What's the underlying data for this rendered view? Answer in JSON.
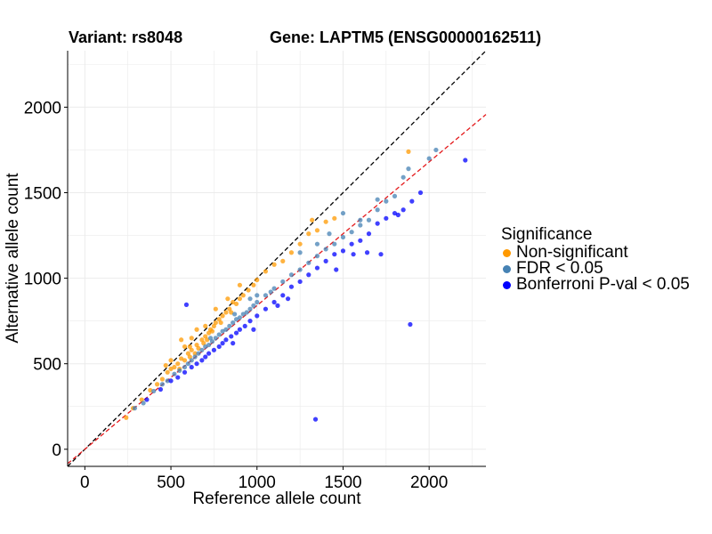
{
  "header": {
    "variant_label": "Variant: rs8048",
    "gene_label": "Gene: LAPTM5 (ENSG00000162511)"
  },
  "chart_data": {
    "type": "scatter",
    "title": "Variant: rs8048    Gene: LAPTM5 (ENSG00000162511)",
    "xlabel": "Reference allele count",
    "ylabel": "Alternative allele count",
    "xlim": [
      -100,
      2330
    ],
    "ylim": [
      -100,
      2330
    ],
    "xticks": [
      0,
      500,
      1000,
      1500,
      2000
    ],
    "yticks": [
      0,
      500,
      1000,
      1500,
      2000
    ],
    "grid": true,
    "reference_lines": [
      {
        "name": "identity",
        "slope": 1.0,
        "intercept": 0,
        "color": "#000000",
        "style": "dashed"
      },
      {
        "name": "fit",
        "slope": 0.84,
        "intercept": 0,
        "color": "#e41a1c",
        "style": "dashed"
      }
    ],
    "legend": {
      "title": "Significance",
      "placement": "right",
      "entries": [
        {
          "label": "Non-significant",
          "color": "#FF9900"
        },
        {
          "label": "FDR < 0.05",
          "color": "#4682B4"
        },
        {
          "label": "Bonferroni P-val < 0.05",
          "color": "#0000FF"
        }
      ]
    },
    "series": [
      {
        "name": "Non-significant",
        "color": "#FF9900",
        "points": [
          [
            240,
            185
          ],
          [
            280,
            240
          ],
          [
            330,
            290
          ],
          [
            380,
            345
          ],
          [
            420,
            380
          ],
          [
            450,
            410
          ],
          [
            480,
            450
          ],
          [
            500,
            470
          ],
          [
            520,
            480
          ],
          [
            540,
            500
          ],
          [
            550,
            470
          ],
          [
            560,
            530
          ],
          [
            580,
            520
          ],
          [
            600,
            560
          ],
          [
            610,
            540
          ],
          [
            620,
            580
          ],
          [
            640,
            560
          ],
          [
            650,
            610
          ],
          [
            660,
            590
          ],
          [
            680,
            640
          ],
          [
            690,
            620
          ],
          [
            700,
            660
          ],
          [
            710,
            640
          ],
          [
            720,
            680
          ],
          [
            730,
            700
          ],
          [
            740,
            690
          ],
          [
            750,
            720
          ],
          [
            760,
            740
          ],
          [
            780,
            760
          ],
          [
            790,
            740
          ],
          [
            800,
            780
          ],
          [
            820,
            800
          ],
          [
            840,
            820
          ],
          [
            850,
            800
          ],
          [
            860,
            860
          ],
          [
            880,
            850
          ],
          [
            900,
            880
          ],
          [
            920,
            900
          ],
          [
            950,
            930
          ],
          [
            980,
            960
          ],
          [
            1000,
            990
          ],
          [
            1050,
            1040
          ],
          [
            1100,
            1080
          ],
          [
            1150,
            1100
          ],
          [
            1200,
            1150
          ],
          [
            1250,
            1200
          ],
          [
            1300,
            1260
          ],
          [
            1350,
            1280
          ],
          [
            1400,
            1330
          ],
          [
            1450,
            1350
          ],
          [
            1880,
            1740
          ],
          [
            560,
            640
          ],
          [
            620,
            650
          ],
          [
            700,
            720
          ],
          [
            650,
            700
          ],
          [
            580,
            600
          ],
          [
            760,
            820
          ],
          [
            830,
            880
          ],
          [
            500,
            520
          ],
          [
            470,
            490
          ],
          [
            610,
            600
          ],
          [
            900,
            960
          ],
          [
            1320,
            1340
          ]
        ]
      },
      {
        "name": "FDR < 0.05",
        "color": "#4682B4",
        "points": [
          [
            290,
            240
          ],
          [
            340,
            270
          ],
          [
            400,
            340
          ],
          [
            450,
            380
          ],
          [
            480,
            400
          ],
          [
            520,
            440
          ],
          [
            550,
            460
          ],
          [
            580,
            480
          ],
          [
            600,
            500
          ],
          [
            620,
            520
          ],
          [
            640,
            540
          ],
          [
            660,
            560
          ],
          [
            680,
            580
          ],
          [
            700,
            600
          ],
          [
            720,
            610
          ],
          [
            740,
            630
          ],
          [
            760,
            650
          ],
          [
            780,
            670
          ],
          [
            800,
            690
          ],
          [
            820,
            700
          ],
          [
            840,
            720
          ],
          [
            860,
            740
          ],
          [
            880,
            760
          ],
          [
            900,
            770
          ],
          [
            920,
            790
          ],
          [
            940,
            800
          ],
          [
            960,
            820
          ],
          [
            980,
            840
          ],
          [
            1000,
            860
          ],
          [
            1050,
            900
          ],
          [
            1100,
            940
          ],
          [
            1150,
            980
          ],
          [
            1200,
            1020
          ],
          [
            1250,
            1050
          ],
          [
            1300,
            1090
          ],
          [
            1350,
            1130
          ],
          [
            1400,
            1170
          ],
          [
            1450,
            1200
          ],
          [
            1500,
            1240
          ],
          [
            1550,
            1270
          ],
          [
            1600,
            1310
          ],
          [
            1650,
            1340
          ],
          [
            1700,
            1400
          ],
          [
            1750,
            1450
          ],
          [
            1800,
            1480
          ],
          [
            1850,
            1590
          ],
          [
            1880,
            1640
          ],
          [
            2000,
            1700
          ],
          [
            2040,
            1750
          ],
          [
            1500,
            1380
          ],
          [
            1420,
            1260
          ],
          [
            1080,
            920
          ],
          [
            960,
            880
          ],
          [
            1700,
            1460
          ],
          [
            870,
            790
          ],
          [
            1000,
            900
          ],
          [
            1250,
            1150
          ],
          [
            730,
            650
          ],
          [
            1350,
            1200
          ],
          [
            1600,
            1340
          ]
        ]
      },
      {
        "name": "Bonferroni P-val < 0.05",
        "color": "#0000FF",
        "points": [
          [
            360,
            290
          ],
          [
            440,
            350
          ],
          [
            500,
            400
          ],
          [
            540,
            420
          ],
          [
            580,
            450
          ],
          [
            620,
            480
          ],
          [
            650,
            500
          ],
          [
            680,
            520
          ],
          [
            700,
            540
          ],
          [
            720,
            560
          ],
          [
            750,
            580
          ],
          [
            780,
            600
          ],
          [
            800,
            620
          ],
          [
            820,
            640
          ],
          [
            850,
            660
          ],
          [
            880,
            680
          ],
          [
            900,
            700
          ],
          [
            930,
            720
          ],
          [
            960,
            750
          ],
          [
            1000,
            780
          ],
          [
            1050,
            820
          ],
          [
            1100,
            860
          ],
          [
            1150,
            900
          ],
          [
            1200,
            950
          ],
          [
            1250,
            980
          ],
          [
            1300,
            1020
          ],
          [
            1350,
            1060
          ],
          [
            1400,
            1100
          ],
          [
            1450,
            1140
          ],
          [
            1500,
            1160
          ],
          [
            1550,
            1200
          ],
          [
            1600,
            1220
          ],
          [
            1650,
            1260
          ],
          [
            1700,
            1320
          ],
          [
            1750,
            1350
          ],
          [
            1800,
            1380
          ],
          [
            1850,
            1400
          ],
          [
            1900,
            1450
          ],
          [
            1950,
            1500
          ],
          [
            1890,
            730
          ],
          [
            1340,
            175
          ],
          [
            590,
            845
          ],
          [
            2210,
            1690
          ],
          [
            1720,
            1140
          ],
          [
            1640,
            1150
          ],
          [
            1560,
            1140
          ],
          [
            980,
            700
          ],
          [
            1120,
            840
          ],
          [
            860,
            620
          ],
          [
            1460,
            1050
          ],
          [
            1820,
            1370
          ],
          [
            1180,
            880
          ]
        ]
      }
    ]
  }
}
